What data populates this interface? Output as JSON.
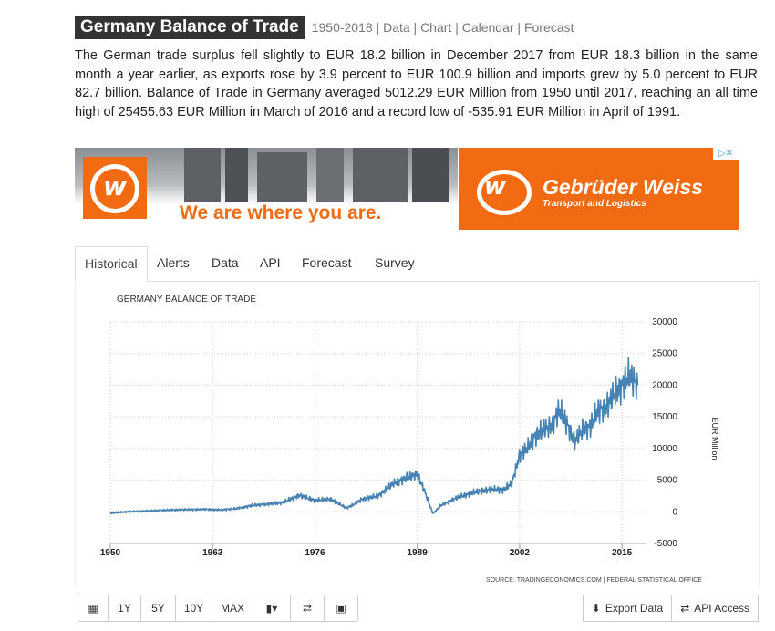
{
  "header": {
    "title": "Germany Balance of Trade",
    "subnav": "1950-2018 | Data | Chart | Calendar | Forecast"
  },
  "summary": "The German trade surplus fell slightly to EUR 18.2 billion in December 2017 from EUR 18.3 billion in the same month a year earlier, as exports rose by 3.9 percent to EUR 100.9 billion and imports grew by 5.0 percent to EUR 82.7 billion. Balance of Trade in Germany averaged 5012.29 EUR Million from 1950 until 2017, reaching an all time high of 25455.63 EUR Million in March of 2016 and a record low of -535.91 EUR Million in April of 1991.",
  "ad": {
    "logo_letter": "w",
    "slogan": "We are where you are.",
    "brand": "Gebrüder Weiss",
    "tagline": "Transport and Logistics",
    "choices": "▷✕"
  },
  "tabs": [
    {
      "label": "Historical",
      "active": true
    },
    {
      "label": "Alerts"
    },
    {
      "label": "Data"
    },
    {
      "label": "API"
    },
    {
      "label": "Forecast"
    },
    {
      "label": "Survey"
    }
  ],
  "chart_data": {
    "type": "line",
    "title": "GERMANY BALANCE OF TRADE",
    "ylabel": "EUR Million",
    "source": "SOURCE: TRADINGECONOMICS.COM  |  FEDERAL STATISTICAL OFFICE",
    "xlim": [
      1950,
      2018
    ],
    "ylim": [
      -5000,
      30000
    ],
    "xticks": [
      1950,
      1963,
      1976,
      1989,
      2002,
      2015
    ],
    "yticks": [
      -5000,
      0,
      5000,
      10000,
      15000,
      20000,
      25000,
      30000
    ],
    "grid": true,
    "line_color": "#4682b4",
    "series": [
      {
        "x": [
          1950,
          1952,
          1954,
          1956,
          1958,
          1960,
          1962,
          1964,
          1966,
          1968,
          1970,
          1972,
          1974,
          1976,
          1978,
          1980,
          1981,
          1982,
          1984,
          1986,
          1988,
          1989,
          1990,
          1991,
          1992,
          1994,
          1996,
          1998,
          2000,
          2001,
          2002,
          2003,
          2004,
          2005,
          2006,
          2007,
          2008,
          2009,
          2010,
          2011,
          2012,
          2013,
          2014,
          2015,
          2016,
          2017
        ],
        "y": [
          -200,
          0,
          100,
          200,
          300,
          350,
          400,
          300,
          500,
          1000,
          1200,
          1500,
          2600,
          1800,
          2000,
          600,
          1200,
          2000,
          2500,
          4500,
          5500,
          6000,
          3000,
          -300,
          1000,
          2200,
          3000,
          3500,
          3500,
          4500,
          9000,
          10000,
          12000,
          13000,
          13500,
          16000,
          14000,
          11000,
          13000,
          13500,
          16000,
          16500,
          18500,
          20000,
          21500,
          20000
        ]
      }
    ]
  },
  "toolbar": {
    "buttons": [
      {
        "icon": "calendar-icon",
        "glyph": "▦"
      },
      {
        "label": "1Y"
      },
      {
        "label": "5Y"
      },
      {
        "label": "10Y"
      },
      {
        "label": "MAX"
      },
      {
        "icon": "bar-chart-icon",
        "glyph": "▮▾"
      },
      {
        "icon": "shuffle-icon",
        "glyph": "⇄"
      },
      {
        "icon": "image-icon",
        "glyph": "▣"
      }
    ],
    "export_label": "Export Data",
    "api_label": "API Access"
  }
}
